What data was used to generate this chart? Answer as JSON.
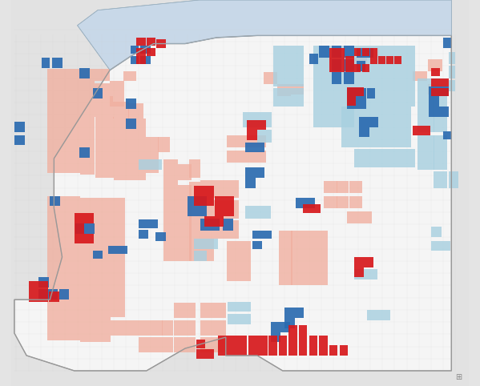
{
  "figsize": [
    5.99,
    4.82
  ],
  "dpi": 100,
  "bg_color": "#e4e4e4",
  "outer_bg": "#e0e0e0",
  "ohio_fill": "#f5f5f5",
  "ohio_border": "#aaaaaa",
  "lake_fill": "#c8d8e8",
  "lake_border": "#aaaaaa",
  "surrounding_fill": "#e8e8e8",
  "colors": {
    "HH": "#d7191c",
    "LH": "#a8d0e0",
    "LL": "#2b6bb0",
    "HL": "#f0b0a0",
    "NS": "#f8f8f8"
  },
  "xlim": [
    -84.85,
    -80.35
  ],
  "ylim": [
    38.25,
    42.05
  ],
  "ohio_boundary": [
    [
      -84.82,
      38.77
    ],
    [
      -84.82,
      39.1
    ],
    [
      -84.47,
      39.1
    ],
    [
      -84.35,
      39.52
    ],
    [
      -84.43,
      40.0
    ],
    [
      -84.43,
      40.49
    ],
    [
      -83.88,
      41.36
    ],
    [
      -83.67,
      41.5
    ],
    [
      -83.45,
      41.62
    ],
    [
      -83.14,
      41.62
    ],
    [
      -82.83,
      41.68
    ],
    [
      -82.43,
      41.7
    ],
    [
      -81.97,
      41.7
    ],
    [
      -81.69,
      41.7
    ],
    [
      -81.44,
      41.7
    ],
    [
      -81.16,
      41.7
    ],
    [
      -80.52,
      41.7
    ],
    [
      -80.52,
      40.64
    ],
    [
      -80.52,
      39.72
    ],
    [
      -80.52,
      38.4
    ],
    [
      -82.18,
      38.4
    ],
    [
      -82.43,
      38.55
    ],
    [
      -82.74,
      38.55
    ],
    [
      -82.74,
      38.73
    ],
    [
      -83.14,
      38.62
    ],
    [
      -83.52,
      38.4
    ],
    [
      -84.23,
      38.4
    ],
    [
      -84.7,
      38.55
    ],
    [
      -84.82,
      38.77
    ]
  ],
  "lake_erie": [
    [
      -83.45,
      41.62
    ],
    [
      -83.14,
      41.62
    ],
    [
      -82.83,
      41.68
    ],
    [
      -82.43,
      41.7
    ],
    [
      -81.97,
      41.7
    ],
    [
      -81.69,
      41.7
    ],
    [
      -81.44,
      41.7
    ],
    [
      -81.16,
      41.7
    ],
    [
      -80.52,
      41.7
    ],
    [
      -80.52,
      42.05
    ],
    [
      -82.0,
      42.05
    ],
    [
      -83.0,
      42.05
    ],
    [
      -84.0,
      41.95
    ],
    [
      -84.2,
      41.8
    ],
    [
      -83.88,
      41.36
    ],
    [
      -83.67,
      41.5
    ],
    [
      -83.45,
      41.62
    ]
  ]
}
